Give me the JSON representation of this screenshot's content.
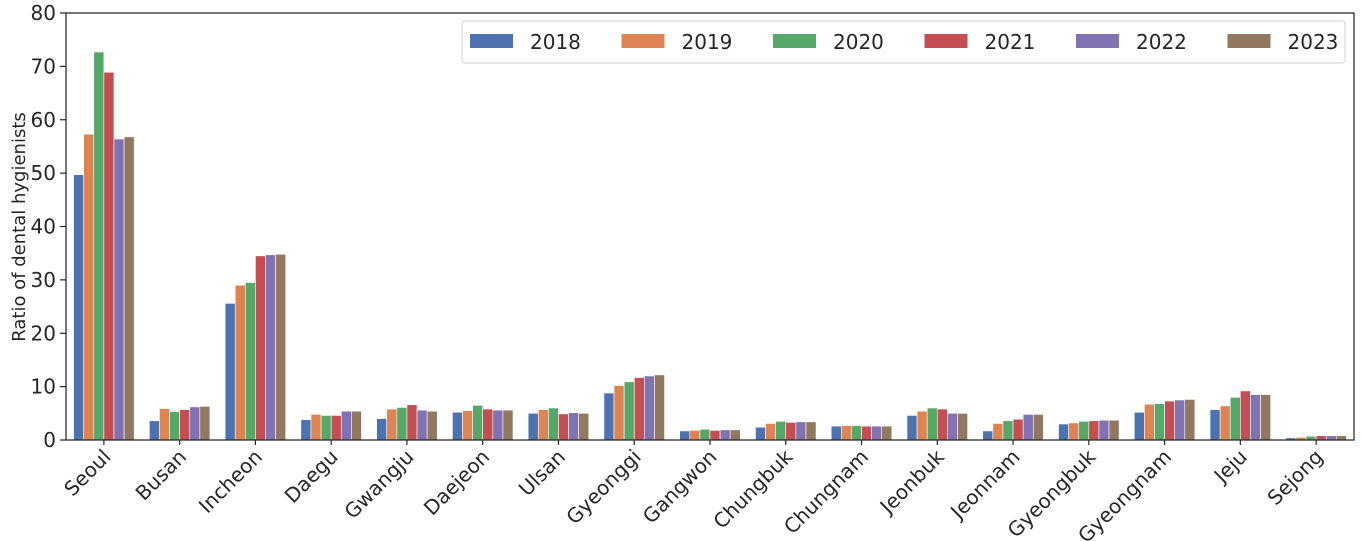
{
  "chart_data": {
    "type": "bar",
    "ylabel": "Ratio of dental hygienists",
    "xlabel": "",
    "ylim": [
      0,
      80
    ],
    "yticks": [
      0,
      10,
      20,
      30,
      40,
      50,
      60,
      70,
      80
    ],
    "grid": false,
    "legend_position": "top-right",
    "categories": [
      "Seoul",
      "Busan",
      "Incheon",
      "Daegu",
      "Gwangju",
      "Daejeon",
      "Ulsan",
      "Gyeonggi",
      "Gangwon",
      "Chungbuk",
      "Chungnam",
      "Jeonbuk",
      "Jeonnam",
      "Gyeongbuk",
      "Gyeongnam",
      "Jeju",
      "Sejong"
    ],
    "series": [
      {
        "name": "2018",
        "color": "#4c72b0",
        "values": [
          49.7,
          3.6,
          25.6,
          3.8,
          4.0,
          5.2,
          5.0,
          8.8,
          1.7,
          2.4,
          2.6,
          4.6,
          1.7,
          3.0,
          5.2,
          5.7,
          0.4
        ]
      },
      {
        "name": "2019",
        "color": "#dd8452",
        "values": [
          57.3,
          5.9,
          29.0,
          4.8,
          5.8,
          5.5,
          5.7,
          10.2,
          1.8,
          3.1,
          2.7,
          5.4,
          3.1,
          3.2,
          6.7,
          6.4,
          0.5
        ]
      },
      {
        "name": "2020",
        "color": "#55a868",
        "values": [
          72.7,
          5.3,
          29.5,
          4.6,
          6.1,
          6.5,
          6.0,
          10.9,
          2.0,
          3.5,
          2.7,
          6.0,
          3.6,
          3.5,
          6.8,
          8.0,
          0.7
        ]
      },
      {
        "name": "2021",
        "color": "#c44e52",
        "values": [
          68.9,
          5.7,
          34.5,
          4.6,
          6.6,
          5.8,
          4.9,
          11.7,
          1.8,
          3.3,
          2.6,
          5.8,
          3.9,
          3.6,
          7.3,
          9.2,
          0.8
        ]
      },
      {
        "name": "2022",
        "color": "#8172b3",
        "values": [
          56.4,
          6.2,
          34.7,
          5.4,
          5.6,
          5.6,
          5.1,
          12.0,
          1.9,
          3.4,
          2.6,
          5.0,
          4.8,
          3.7,
          7.5,
          8.5,
          0.8
        ]
      },
      {
        "name": "2023",
        "color": "#937860",
        "values": [
          56.8,
          6.3,
          34.8,
          5.4,
          5.4,
          5.6,
          5.0,
          12.2,
          1.9,
          3.4,
          2.6,
          5.0,
          4.8,
          3.7,
          7.6,
          8.5,
          0.8
        ]
      }
    ]
  }
}
